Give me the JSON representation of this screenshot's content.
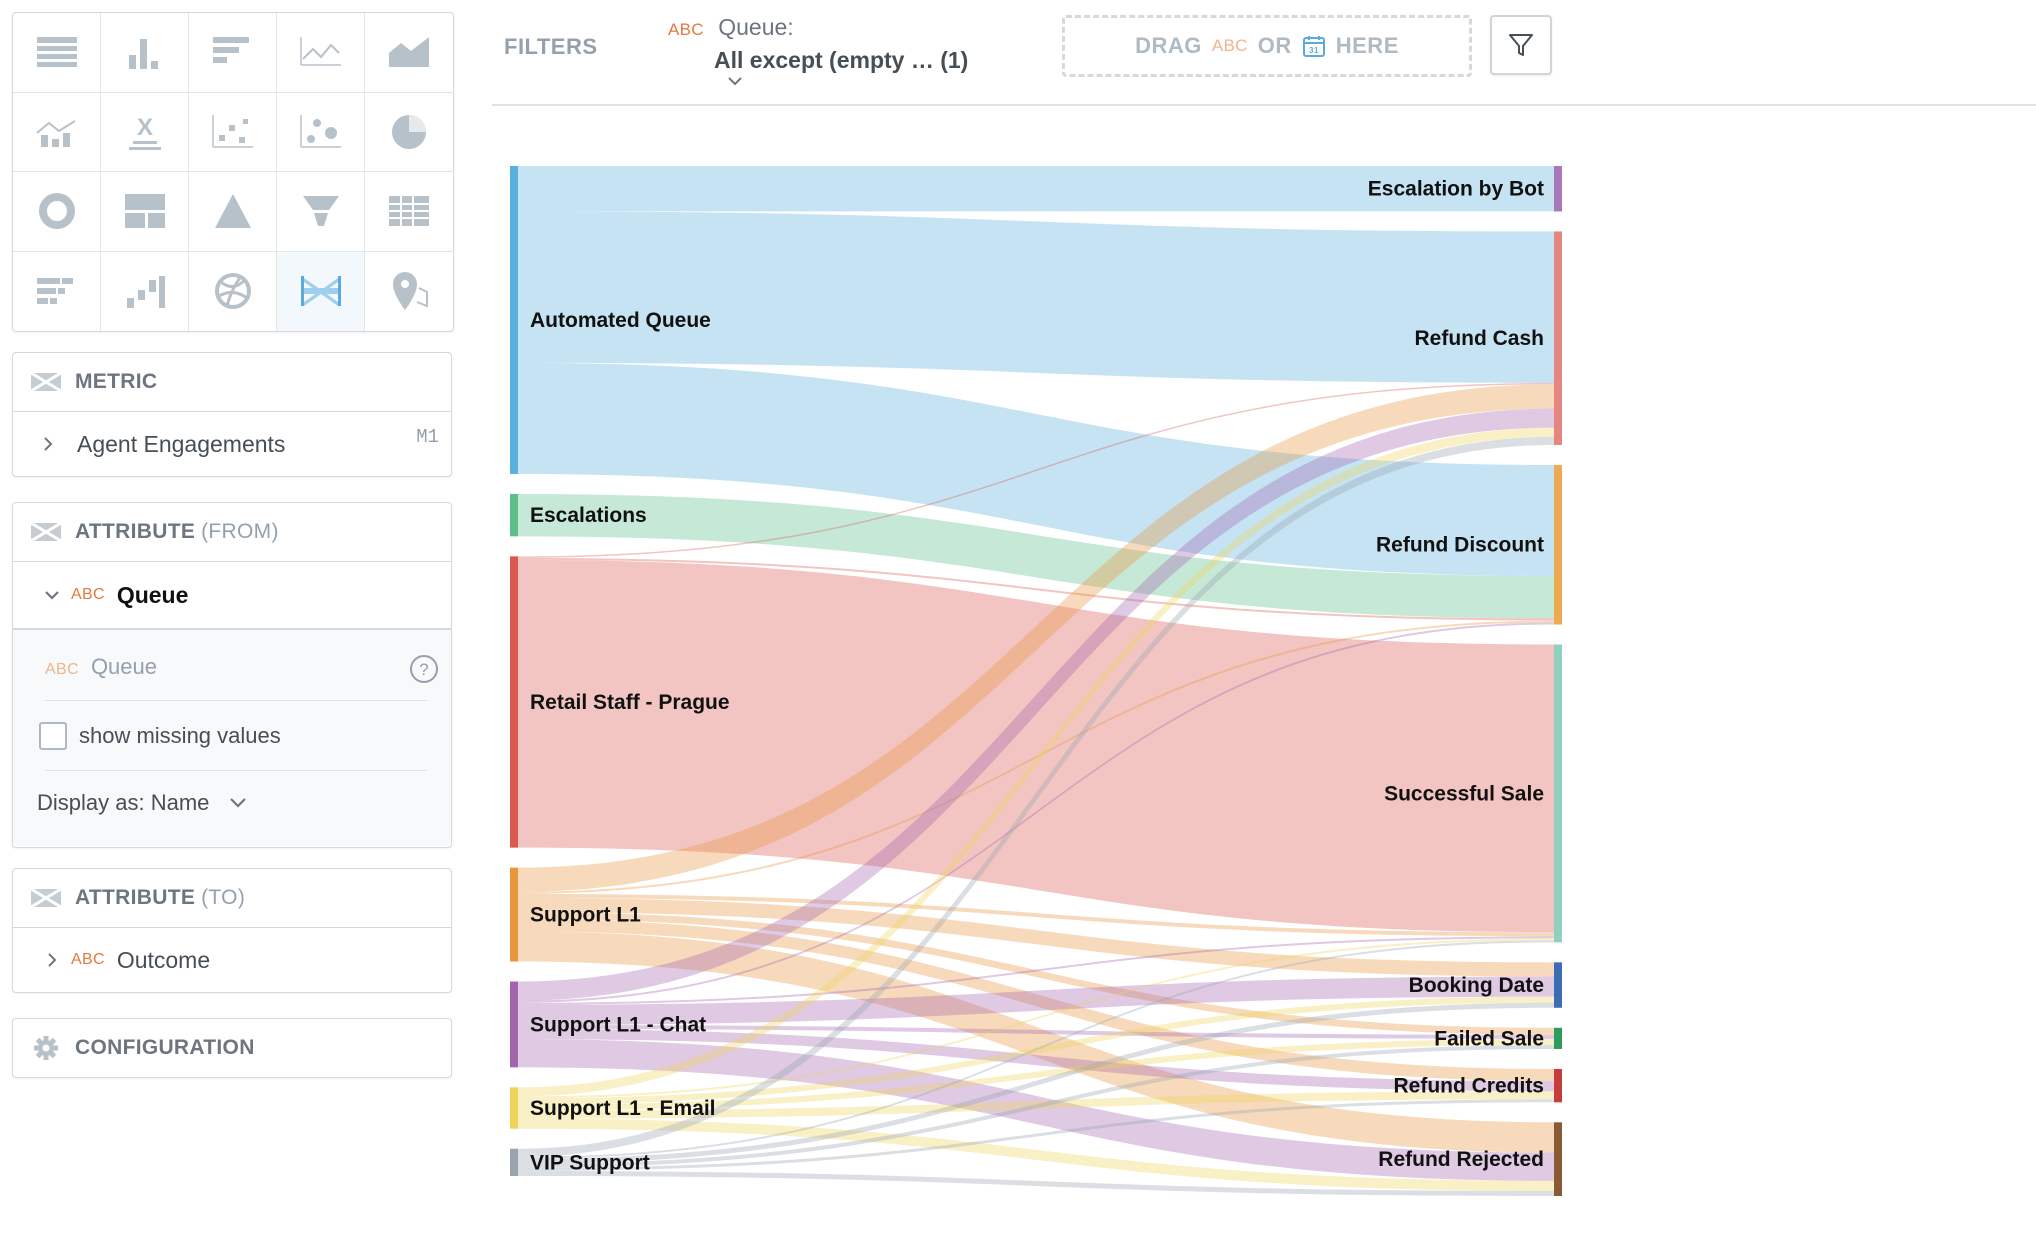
{
  "sidebar": {
    "viz_types": [
      {
        "icon": "table-icon"
      },
      {
        "icon": "column-chart-icon"
      },
      {
        "icon": "bar-chart-icon"
      },
      {
        "icon": "line-chart-icon"
      },
      {
        "icon": "area-chart-icon"
      },
      {
        "icon": "combo-chart-icon"
      },
      {
        "icon": "headline-icon"
      },
      {
        "icon": "scatter-plot-icon"
      },
      {
        "icon": "bubble-chart-icon"
      },
      {
        "icon": "pie-chart-icon"
      },
      {
        "icon": "donut-chart-icon"
      },
      {
        "icon": "treemap-icon"
      },
      {
        "icon": "pyramid-chart-icon"
      },
      {
        "icon": "funnel-chart-icon"
      },
      {
        "icon": "heatmap-icon"
      },
      {
        "icon": "bullet-chart-icon"
      },
      {
        "icon": "waterfall-chart-icon"
      },
      {
        "icon": "dependency-wheel-icon"
      },
      {
        "icon": "sankey-chart-icon",
        "active": true
      },
      {
        "icon": "geo-pushpin-icon"
      }
    ],
    "metric": {
      "title": "METRIC",
      "item": "Agent Engagements",
      "tag": "M1"
    },
    "attribute_from": {
      "title": "ATTRIBUTE",
      "qualifier": "(FROM)",
      "type_badge": "ABC",
      "item": "Queue",
      "config_badge": "ABC",
      "config_label": "Queue",
      "show_missing": "show missing values",
      "display_as": "Display as: Name"
    },
    "attribute_to": {
      "title": "ATTRIBUTE",
      "qualifier": "(TO)",
      "type_badge": "ABC",
      "item": "Outcome"
    },
    "configuration": {
      "title": "CONFIGURATION"
    }
  },
  "filters": {
    "label": "FILTERS",
    "queue_badge": "ABC",
    "queue_label": "Queue:",
    "queue_value": "All except (empty … (1)",
    "drop_drag": "DRAG",
    "drop_abc": "ABC",
    "drop_or": "OR",
    "drop_here": "HERE"
  },
  "chart_data": {
    "type": "sankey",
    "sources": [
      {
        "name": "Automated Queue",
        "color": "#58b0dc"
      },
      {
        "name": "Escalations",
        "color": "#5dbd8b"
      },
      {
        "name": "Retail Staff - Prague",
        "color": "#db5a50"
      },
      {
        "name": "Support L1",
        "color": "#e9963f"
      },
      {
        "name": "Support L1 - Chat",
        "color": "#a365ae"
      },
      {
        "name": "Support L1 - Email",
        "color": "#efd35b"
      },
      {
        "name": "VIP Support",
        "color": "#99a4ae"
      }
    ],
    "targets": [
      {
        "name": "Escalation by Bot",
        "color": "#a779b8"
      },
      {
        "name": "Refund Cash",
        "color": "#e38780"
      },
      {
        "name": "Refund Discount",
        "color": "#eeaa52"
      },
      {
        "name": "Successful Sale",
        "color": "#8fd1bc"
      },
      {
        "name": "Booking Date",
        "color": "#3d6db1"
      },
      {
        "name": "Failed Sale",
        "color": "#2e9c5e"
      },
      {
        "name": "Refund Credits",
        "color": "#c43d3a"
      },
      {
        "name": "Refund Rejected",
        "color": "#8a5a34"
      }
    ],
    "links": [
      {
        "source": "Automated Queue",
        "target": "Escalation by Bot",
        "value": 45
      },
      {
        "source": "Automated Queue",
        "target": "Refund Cash",
        "value": 150
      },
      {
        "source": "Automated Queue",
        "target": "Refund Discount",
        "value": 110
      },
      {
        "source": "Escalations",
        "target": "Refund Discount",
        "value": 42
      },
      {
        "source": "Retail Staff - Prague",
        "target": "Refund Cash",
        "value": 1.5
      },
      {
        "source": "Retail Staff - Prague",
        "target": "Refund Discount",
        "value": 2
      },
      {
        "source": "Retail Staff - Prague",
        "target": "Successful Sale",
        "value": 285
      },
      {
        "source": "Support L1",
        "target": "Refund Cash",
        "value": 24
      },
      {
        "source": "Support L1",
        "target": "Refund Discount",
        "value": 2
      },
      {
        "source": "Support L1",
        "target": "Successful Sale",
        "value": 4
      },
      {
        "source": "Support L1",
        "target": "Booking Date",
        "value": 14
      },
      {
        "source": "Support L1",
        "target": "Failed Sale",
        "value": 7
      },
      {
        "source": "Support L1",
        "target": "Refund Credits",
        "value": 12
      },
      {
        "source": "Support L1",
        "target": "Refund Rejected",
        "value": 30
      },
      {
        "source": "Support L1 - Chat",
        "target": "Refund Cash",
        "value": 19
      },
      {
        "source": "Support L1 - Chat",
        "target": "Refund Discount",
        "value": 2
      },
      {
        "source": "Support L1 - Chat",
        "target": "Successful Sale",
        "value": 2
      },
      {
        "source": "Support L1 - Chat",
        "target": "Booking Date",
        "value": 20
      },
      {
        "source": "Support L1 - Chat",
        "target": "Failed Sale",
        "value": 4
      },
      {
        "source": "Support L1 - Chat",
        "target": "Refund Credits",
        "value": 10
      },
      {
        "source": "Support L1 - Chat",
        "target": "Refund Rejected",
        "value": 28
      },
      {
        "source": "Support L1 - Email",
        "target": "Refund Cash",
        "value": 9
      },
      {
        "source": "Support L1 - Email",
        "target": "Successful Sale",
        "value": 2
      },
      {
        "source": "Support L1 - Email",
        "target": "Booking Date",
        "value": 6
      },
      {
        "source": "Support L1 - Email",
        "target": "Failed Sale",
        "value": 6
      },
      {
        "source": "Support L1 - Email",
        "target": "Refund Credits",
        "value": 8
      },
      {
        "source": "Support L1 - Email",
        "target": "Refund Rejected",
        "value": 10
      },
      {
        "source": "VIP Support",
        "target": "Refund Cash",
        "value": 8
      },
      {
        "source": "VIP Support",
        "target": "Successful Sale",
        "value": 2
      },
      {
        "source": "VIP Support",
        "target": "Booking Date",
        "value": 5
      },
      {
        "source": "VIP Support",
        "target": "Failed Sale",
        "value": 4
      },
      {
        "source": "VIP Support",
        "target": "Refund Credits",
        "value": 3
      },
      {
        "source": "VIP Support",
        "target": "Refund Rejected",
        "value": 5
      }
    ]
  }
}
